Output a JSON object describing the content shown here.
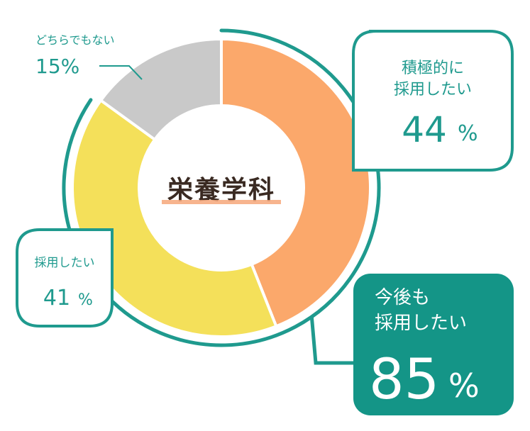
{
  "colors": {
    "teal": "#1f9a8e",
    "teal_dark": "#149587",
    "orange": "#fba86b",
    "yellow": "#f4e05a",
    "gray": "#c9c9c9",
    "underline": "#f6a77a",
    "title": "#3a2a22"
  },
  "chart_data": {
    "type": "pie",
    "title": "栄養学科",
    "slices": [
      {
        "label": "積極的に採用したい",
        "value": 44,
        "color": "#fba86b"
      },
      {
        "label": "採用したい",
        "value": 41,
        "color": "#f4e05a"
      },
      {
        "label": "どちらでもない",
        "value": 15,
        "color": "#c9c9c9"
      }
    ],
    "summary": {
      "label": "今後も採用したい",
      "value": 85
    }
  },
  "labels": {
    "gray": {
      "title": "どちらでもない",
      "value": "15%"
    },
    "orange": {
      "line1": "積極的に",
      "line2": "採用したい",
      "value": "44",
      "unit": "%"
    },
    "yellow": {
      "title": "採用したい",
      "value": "41",
      "unit": "%"
    },
    "total": {
      "line1": "今後も",
      "line2": "採用したい",
      "value": "85",
      "unit": "%"
    }
  }
}
